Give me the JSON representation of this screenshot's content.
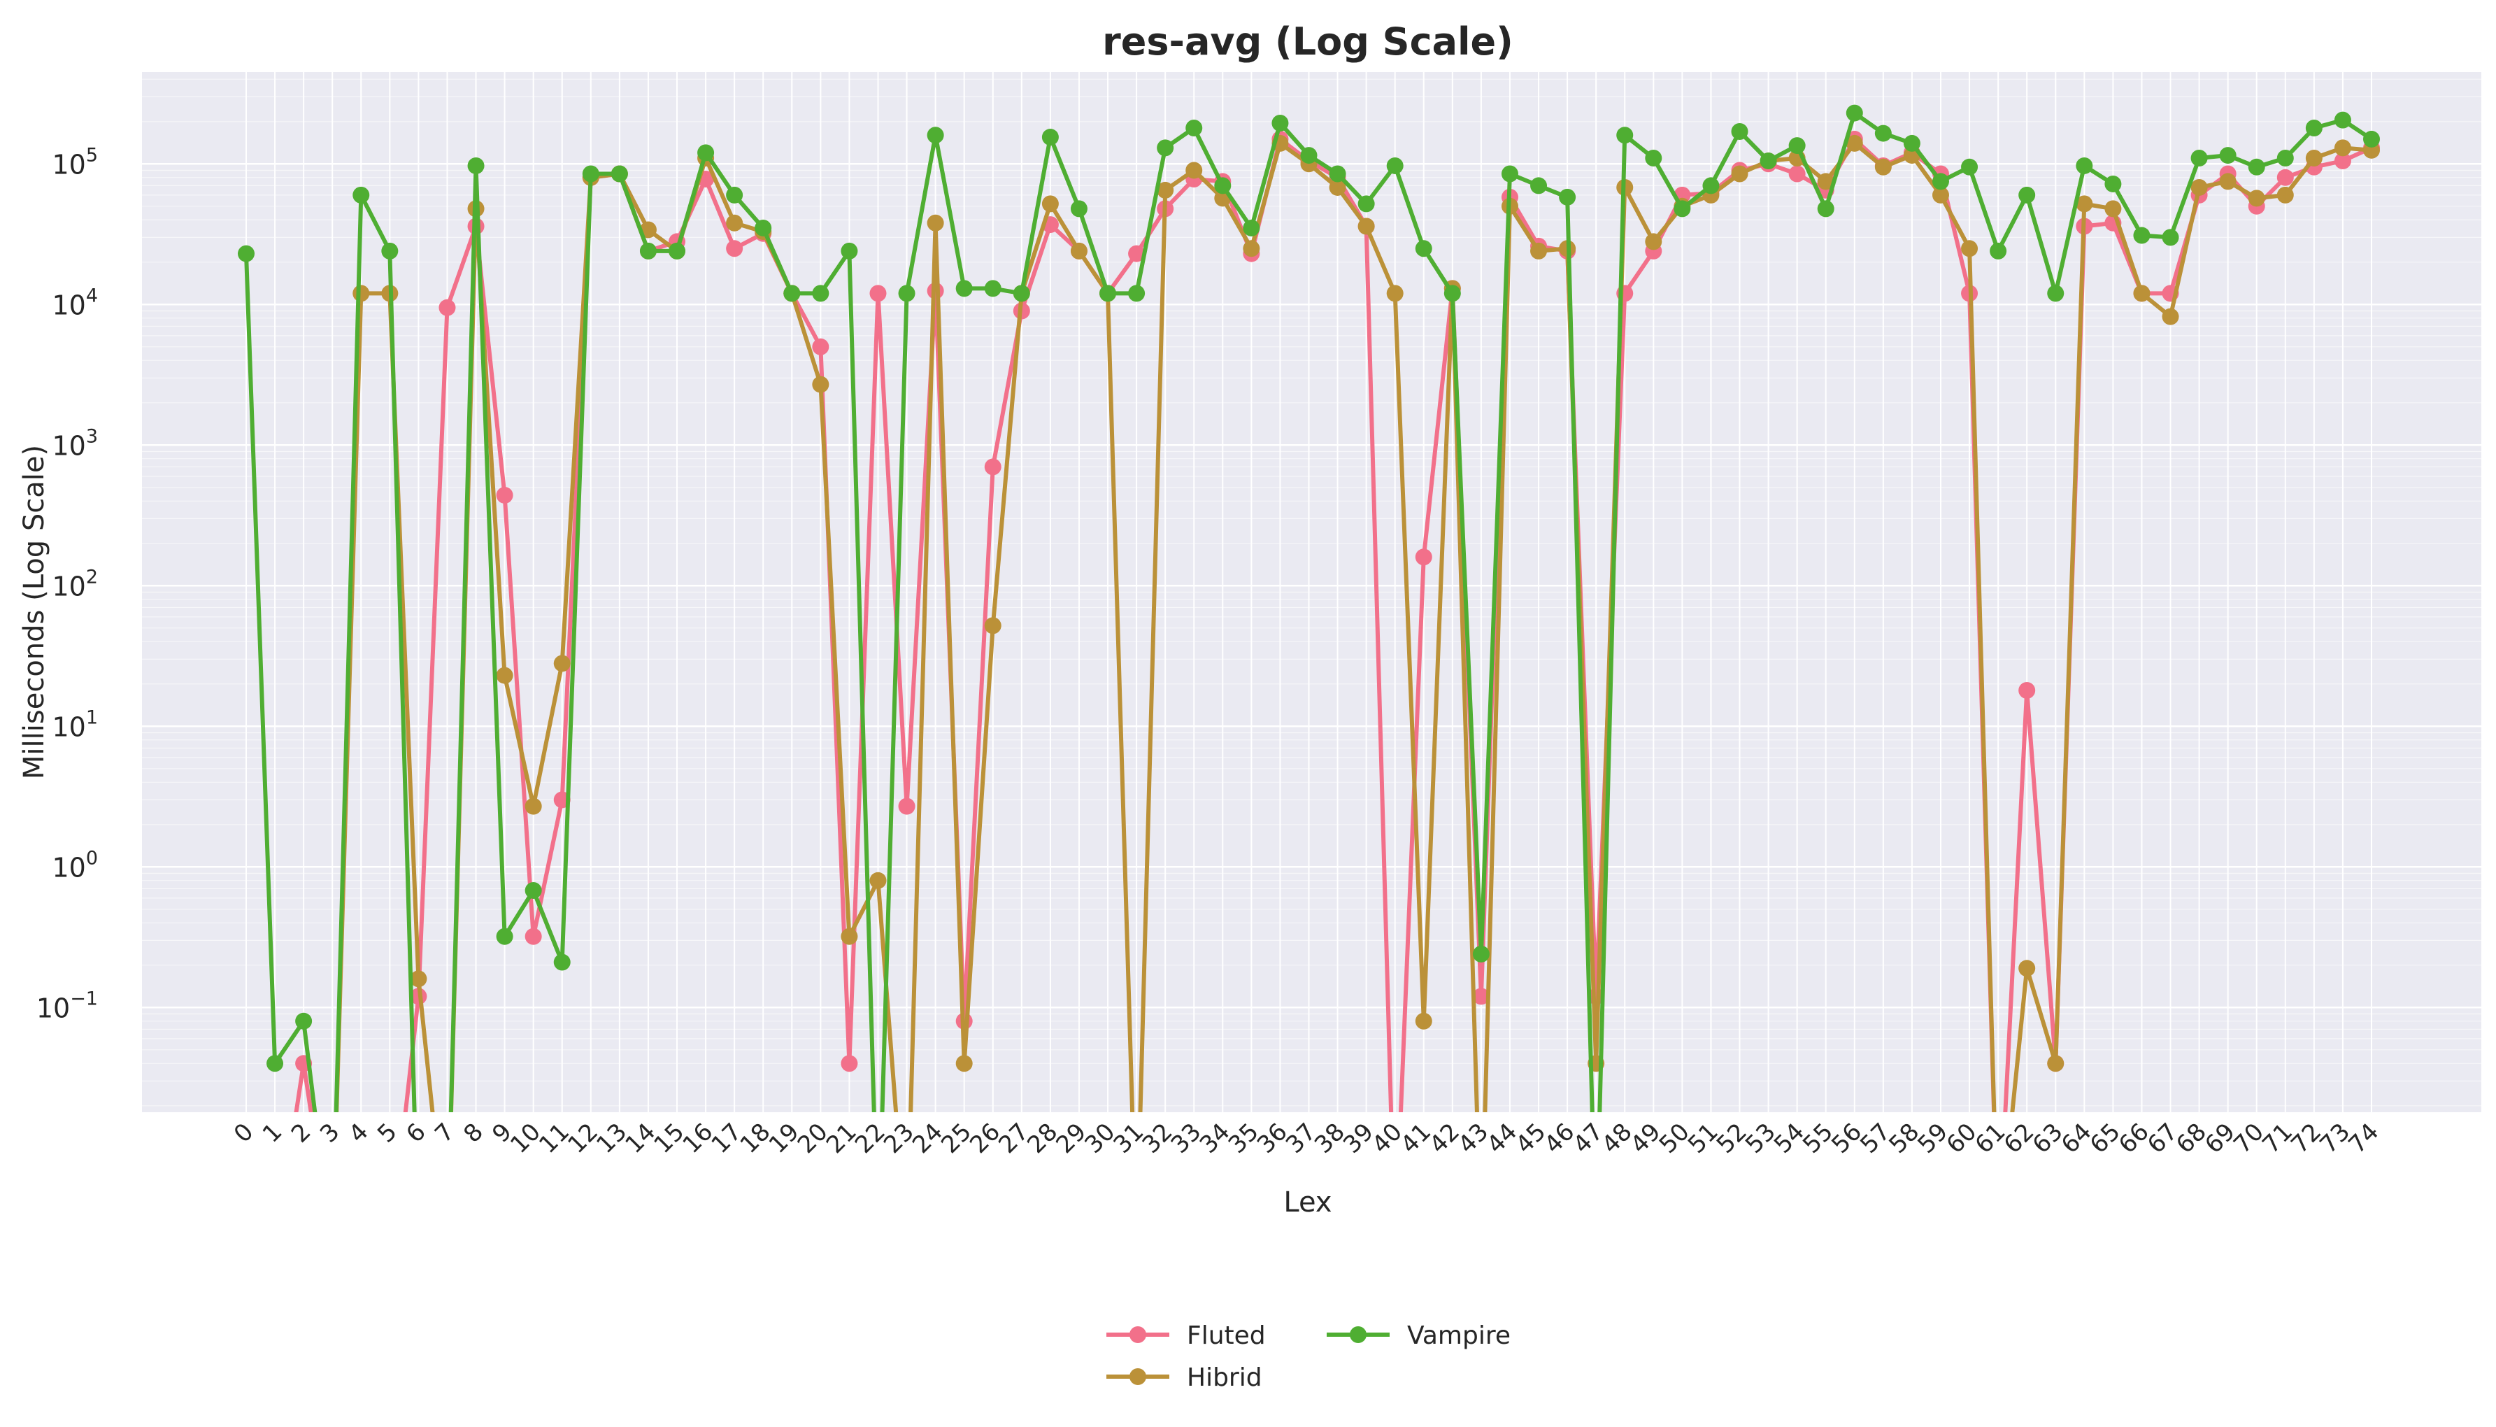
{
  "chart_data": {
    "type": "line",
    "title": "res-avg (Log Scale)",
    "xlabel": "Lex",
    "ylabel": "Milliseconds (Log Scale)",
    "yscale": "log",
    "ylim": [
      0.018,
      450000
    ],
    "y_ticks": [
      {
        "value": 0.1,
        "base": "10",
        "exp": "−1"
      },
      {
        "value": 1,
        "base": "10",
        "exp": "0"
      },
      {
        "value": 10,
        "base": "10",
        "exp": "1"
      },
      {
        "value": 100,
        "base": "10",
        "exp": "2"
      },
      {
        "value": 1000,
        "base": "10",
        "exp": "3"
      },
      {
        "value": 10000,
        "base": "10",
        "exp": "4"
      },
      {
        "value": 100000,
        "base": "10",
        "exp": "5"
      }
    ],
    "grid": true,
    "legend_position": "bottom-center",
    "categories": [
      "0",
      "1",
      "2",
      "3",
      "4",
      "5",
      "6",
      "7",
      "8",
      "9",
      "10",
      "11",
      "12",
      "13",
      "14",
      "15",
      "16",
      "17",
      "18",
      "19",
      "20",
      "21",
      "22",
      "23",
      "24",
      "25",
      "26",
      "27",
      "28",
      "29",
      "30",
      "31",
      "32",
      "33",
      "34",
      "35",
      "36",
      "37",
      "38",
      "39",
      "40",
      "41",
      "42",
      "43",
      "44",
      "45",
      "46",
      "47",
      "48",
      "49",
      "50",
      "51",
      "52",
      "53",
      "54",
      "55",
      "56",
      "57",
      "58",
      "59",
      "60",
      "61",
      "62",
      "63",
      "64",
      "65",
      "66",
      "67",
      "68",
      "69",
      "70",
      "71",
      "72",
      "73",
      "74"
    ],
    "series": [
      {
        "name": "Fluted",
        "color": "#f2708a",
        "values": [
          null,
          null,
          0.04,
          null,
          null,
          null,
          0.12,
          9500,
          36000,
          440,
          0.32,
          3,
          80000,
          85000,
          24000,
          28000,
          78000,
          25000,
          32000,
          12000,
          5000,
          0.04,
          12000,
          2.7,
          12500,
          0.08,
          700,
          9000,
          37000,
          24000,
          12000,
          23000,
          48000,
          78000,
          75000,
          23000,
          150000,
          105000,
          80000,
          36000,
          null,
          160,
          13000,
          0.12,
          58000,
          26000,
          24000,
          0.12,
          12000,
          24000,
          60000,
          62000,
          90000,
          100000,
          85000,
          65000,
          150000,
          97000,
          120000,
          85000,
          12000,
          null,
          18,
          0.04,
          36000,
          38000,
          12000,
          12000,
          60000,
          85000,
          50000,
          80000,
          95000,
          105000,
          130000
        ]
      },
      {
        "name": "Hibrid",
        "color": "#bb9138",
        "values": [
          null,
          null,
          null,
          null,
          12000,
          12000,
          0.16,
          null,
          48000,
          23,
          2.7,
          28,
          80000,
          85000,
          34000,
          24000,
          110000,
          38000,
          33000,
          12000,
          2700,
          0.32,
          0.8,
          null,
          38000,
          0.04,
          52,
          12000,
          52000,
          24000,
          12000,
          null,
          65000,
          90000,
          57000,
          25000,
          140000,
          100000,
          68000,
          36000,
          12000,
          0.08,
          13000,
          null,
          50000,
          24000,
          25000,
          0.04,
          68000,
          28000,
          50000,
          60000,
          85000,
          105000,
          110000,
          75000,
          140000,
          95000,
          115000,
          60000,
          25000,
          null,
          0.19,
          0.04,
          52000,
          48000,
          12000,
          8200,
          68000,
          75000,
          57000,
          60000,
          110000,
          130000,
          125000
        ]
      },
      {
        "name": "Vampire",
        "color": "#4fae32",
        "values": [
          23000,
          0.04,
          0.08,
          null,
          60000,
          24000,
          null,
          null,
          97000,
          0.32,
          0.68,
          0.21,
          85000,
          85000,
          24000,
          24000,
          120000,
          60000,
          35000,
          12000,
          12000,
          24000,
          null,
          12000,
          160000,
          13000,
          13000,
          12000,
          155000,
          48000,
          12000,
          12000,
          130000,
          180000,
          70000,
          35000,
          195000,
          115000,
          85000,
          52000,
          97000,
          25000,
          12000,
          0.24,
          85000,
          70000,
          58000,
          null,
          160000,
          110000,
          48000,
          70000,
          170000,
          105000,
          135000,
          48000,
          230000,
          165000,
          140000,
          75000,
          95000,
          24000,
          60000,
          12000,
          97000,
          72000,
          31000,
          30000,
          110000,
          115000,
          95000,
          110000,
          180000,
          205000,
          150000
        ]
      }
    ]
  }
}
